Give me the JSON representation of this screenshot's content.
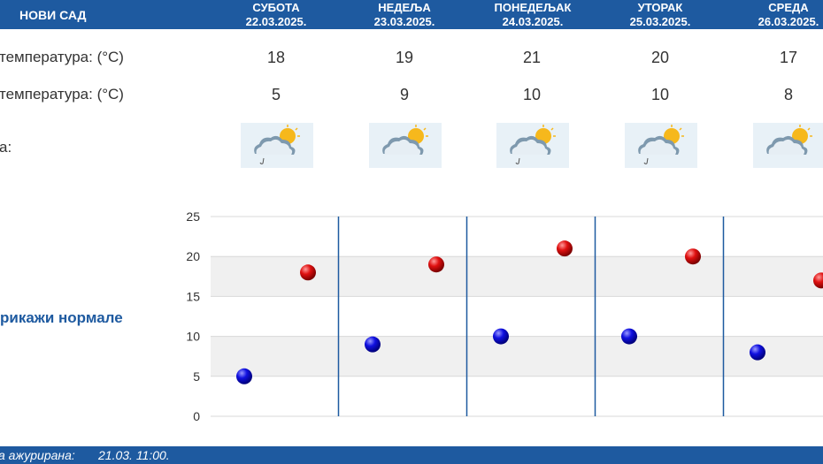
{
  "header": {
    "city": "НОВИ САД"
  },
  "days": [
    {
      "name": "СУБОТА",
      "date": "22.03.2025.",
      "max": "18",
      "min": "5"
    },
    {
      "name": "НЕДЕЉА",
      "date": "23.03.2025.",
      "max": "19",
      "min": "9"
    },
    {
      "name": "ПОНЕДЕЉАК",
      "date": "24.03.2025.",
      "max": "21",
      "min": "10"
    },
    {
      "name": "УТОРАК",
      "date": "25.03.2025.",
      "max": "20",
      "min": "10"
    },
    {
      "name": "СРЕДА",
      "date": "26.03.2025.",
      "max": "17",
      "min": "8"
    }
  ],
  "rows": {
    "max_label": "температура: (°C)",
    "min_label": "температура: (°C)",
    "weather_label": "а:"
  },
  "weather_icons": [
    "partly-cloudy-light-rain-icon",
    "partly-cloudy-icon",
    "partly-cloudy-light-rain-icon",
    "partly-cloudy-light-rain-icon",
    "partly-cloudy-icon"
  ],
  "normals_link": "рикажи нормале",
  "footer": {
    "updated_label": "а ажурирана:",
    "updated_value": "21.03. 11:00."
  },
  "colors": {
    "header": "#1e5aa0",
    "max_marker": "#d00000",
    "min_marker": "#0000c8"
  },
  "chart_data": {
    "type": "scatter",
    "categories": [
      "СУБОТА",
      "НЕДЕЉА",
      "ПОНЕДЕЉАК",
      "УТОРАК",
      "СРЕДА"
    ],
    "series": [
      {
        "values": [
          18,
          19,
          21,
          20,
          17
        ],
        "color": "#d00000"
      },
      {
        "values": [
          5,
          9,
          10,
          10,
          8
        ],
        "color": "#0000c8"
      }
    ],
    "y_ticks": [
      0,
      5,
      10,
      15,
      20,
      25
    ],
    "ylim": [
      0,
      25
    ],
    "grid": true
  }
}
